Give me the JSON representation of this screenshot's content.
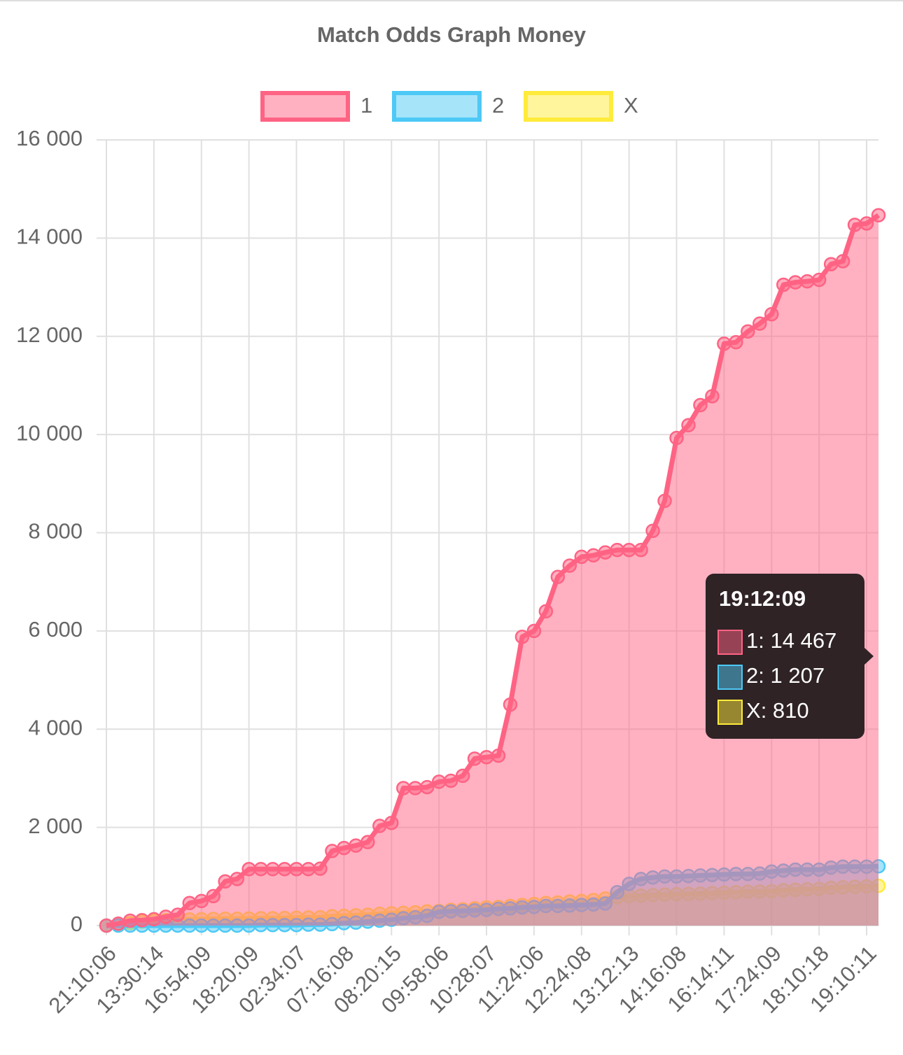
{
  "chart_data": {
    "type": "line",
    "title": "Match Odds Graph Money",
    "categories": [
      "21:10:06",
      null,
      null,
      null,
      "13:30:14",
      null,
      null,
      null,
      "16:54:09",
      null,
      null,
      null,
      "18:20:09",
      null,
      null,
      null,
      "02:34:07",
      null,
      null,
      null,
      "07:16:08",
      null,
      null,
      null,
      "08:20:15",
      null,
      null,
      null,
      "09:58:06",
      null,
      null,
      null,
      "10:28:07",
      null,
      null,
      null,
      "11:24:06",
      null,
      null,
      null,
      "12:24:08",
      null,
      null,
      null,
      "13:12:13",
      null,
      null,
      null,
      "14:16:08",
      null,
      null,
      null,
      "16:14:11",
      null,
      null,
      null,
      "17:24:09",
      null,
      null,
      null,
      "18:10:18",
      null,
      null,
      null,
      "19:10:11",
      "19:12:09"
    ],
    "series": [
      {
        "name": "1",
        "color": "#ff6384",
        "fill": "rgba(255,99,132,0.5)",
        "values": [
          0,
          40,
          100,
          110,
          130,
          180,
          220,
          460,
          500,
          600,
          900,
          950,
          1150,
          1150,
          1150,
          1150,
          1150,
          1150,
          1160,
          1520,
          1580,
          1630,
          1700,
          2030,
          2090,
          2800,
          2800,
          2820,
          2930,
          2950,
          3050,
          3400,
          3430,
          3460,
          4500,
          5880,
          6000,
          6400,
          7100,
          7330,
          7510,
          7540,
          7600,
          7650,
          7650,
          7650,
          8040,
          8650,
          9930,
          10190,
          10600,
          10780,
          11850,
          11880,
          12100,
          12260,
          12450,
          13050,
          13100,
          13120,
          13150,
          13470,
          13530,
          14270,
          14300,
          14467
        ],
        "value_labels": [
          null,
          null,
          null,
          null,
          null,
          null,
          null,
          null,
          null,
          null,
          null,
          null,
          null,
          null,
          null,
          null,
          null,
          null,
          null,
          null,
          null,
          null,
          null,
          null,
          null,
          null,
          null,
          null,
          null,
          null,
          null,
          null,
          null,
          null,
          null,
          null,
          null,
          null,
          null,
          null,
          null,
          null,
          null,
          null,
          null,
          null,
          null,
          null,
          null,
          null,
          null,
          null,
          null,
          null,
          null,
          null,
          null,
          null,
          null,
          null,
          null,
          null,
          null,
          null,
          null,
          "14 467"
        ]
      },
      {
        "name": "2",
        "color": "#4dc9f6",
        "fill": "rgba(77,201,246,0.5)",
        "values": [
          0,
          0,
          0,
          0,
          0,
          0,
          0,
          0,
          0,
          0,
          0,
          0,
          0,
          10,
          10,
          10,
          10,
          20,
          20,
          30,
          50,
          60,
          80,
          100,
          120,
          150,
          170,
          200,
          280,
          290,
          300,
          310,
          320,
          340,
          350,
          370,
          380,
          400,
          400,
          410,
          420,
          430,
          450,
          680,
          850,
          950,
          980,
          1000,
          1000,
          1010,
          1020,
          1030,
          1040,
          1050,
          1050,
          1060,
          1100,
          1120,
          1140,
          1140,
          1140,
          1180,
          1200,
          1200,
          1200,
          1207
        ],
        "value_labels": [
          null,
          null,
          null,
          null,
          null,
          null,
          null,
          null,
          null,
          null,
          null,
          null,
          null,
          null,
          null,
          null,
          null,
          null,
          null,
          null,
          null,
          null,
          null,
          null,
          null,
          null,
          null,
          null,
          null,
          null,
          null,
          null,
          null,
          null,
          null,
          null,
          null,
          null,
          null,
          null,
          null,
          null,
          null,
          null,
          null,
          null,
          null,
          null,
          null,
          null,
          null,
          null,
          null,
          null,
          null,
          null,
          null,
          null,
          null,
          null,
          null,
          null,
          null,
          null,
          null,
          "1 207"
        ]
      },
      {
        "name": "X",
        "color": "#ffeb3b",
        "fill": "rgba(255,235,59,0.5)",
        "values": [
          0,
          20,
          50,
          80,
          100,
          110,
          120,
          125,
          130,
          135,
          140,
          140,
          145,
          150,
          150,
          155,
          160,
          165,
          170,
          190,
          200,
          210,
          220,
          240,
          250,
          260,
          270,
          290,
          300,
          320,
          330,
          350,
          370,
          380,
          400,
          420,
          440,
          460,
          470,
          490,
          500,
          520,
          550,
          580,
          600,
          610,
          620,
          630,
          640,
          645,
          650,
          660,
          670,
          680,
          690,
          695,
          700,
          720,
          730,
          740,
          750,
          770,
          780,
          790,
          800,
          810
        ]
      }
    ],
    "ylim": [
      0,
      16000
    ],
    "yticks": [
      0,
      {
        "value": 2000,
        "label": "2 000"
      },
      {
        "value": 4000,
        "label": "4 000"
      },
      {
        "value": 6000,
        "label": "6 000"
      },
      {
        "value": 8000,
        "label": "8 000"
      },
      {
        "value": 10000,
        "label": "10 000"
      },
      {
        "value": 12000,
        "label": "12 000"
      },
      {
        "value": 14000,
        "label": "14 000"
      },
      {
        "value": 16000,
        "label": "16 000"
      }
    ],
    "grid": true,
    "legend": "top"
  }
}
